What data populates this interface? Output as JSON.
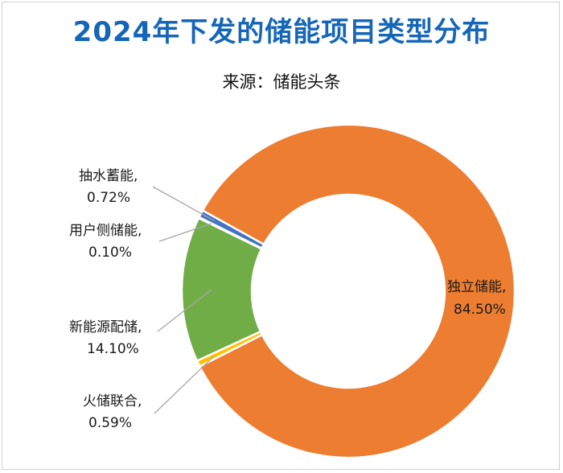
{
  "title": "2024年下发的储能项目类型分布",
  "subtitle": "来源：储能头条",
  "colors": {
    "title": "#1566b8",
    "leader": "#a6a6a6"
  },
  "chart_data": {
    "type": "pie",
    "variant": "donut",
    "title": "2024年下发的储能项目类型分布",
    "slices": [
      {
        "name": "独立储能",
        "label": "独立储能,",
        "value_text": "84.50%",
        "value": 84.5,
        "color": "#ed7d31"
      },
      {
        "name": "火储联合",
        "label": "火储联合,",
        "value_text": "0.59%",
        "value": 0.59,
        "color": "#ffc000"
      },
      {
        "name": "新能源配储",
        "label": "新能源配储,",
        "value_text": "14.10%",
        "value": 14.1,
        "color": "#70ad47"
      },
      {
        "name": "用户侧储能",
        "label": "用户侧储能,",
        "value_text": "0.10%",
        "value": 0.1,
        "color": "#a5a5a5"
      },
      {
        "name": "抽水蓄能",
        "label": "抽水蓄能,",
        "value_text": "0.72%",
        "value": 0.72,
        "color": "#4472c4"
      }
    ],
    "legend": "none"
  }
}
